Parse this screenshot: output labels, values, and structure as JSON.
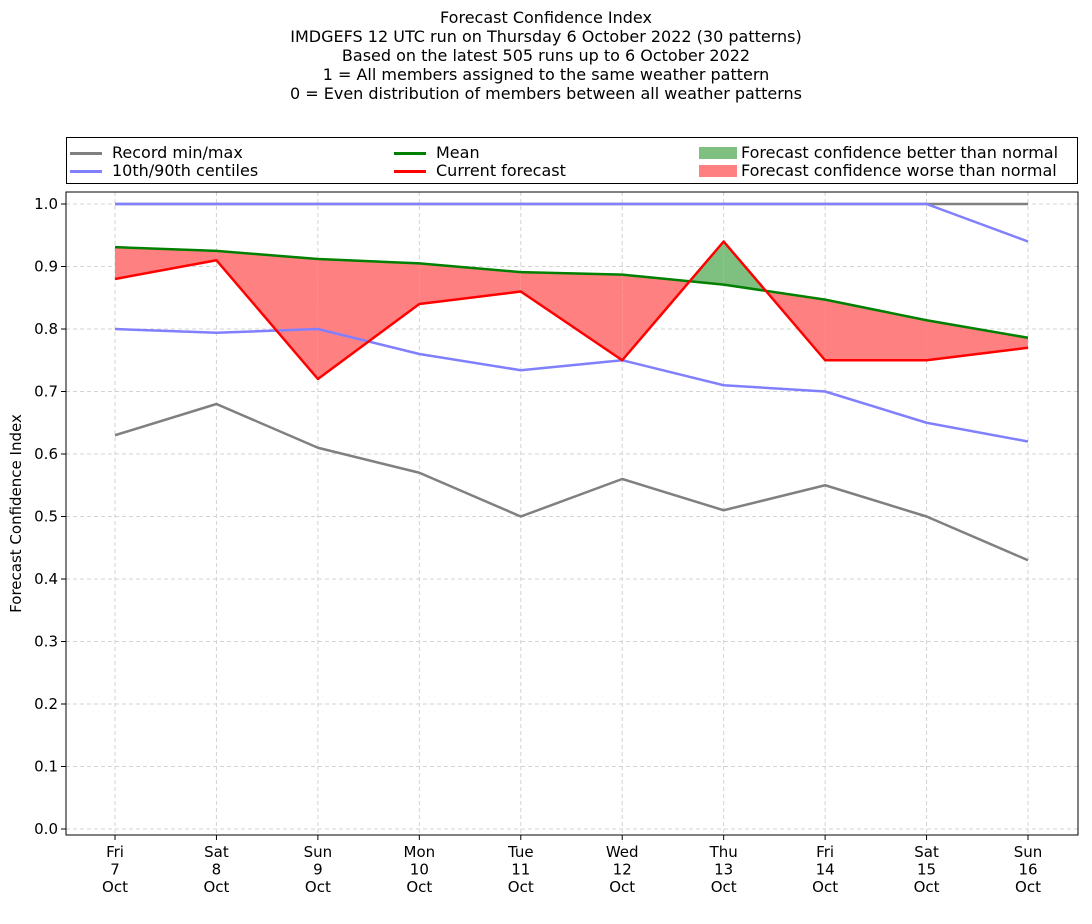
{
  "title_lines": [
    "Forecast Confidence Index",
    "IMDGEFS 12 UTC run on Thursday 6 October 2022 (30 patterns)",
    "Based on the latest 505 runs up to 6 October 2022",
    "1 = All members assigned to the same weather pattern",
    "0 = Even distribution of members between all weather patterns"
  ],
  "legend": {
    "record": "Record min/max",
    "centiles": "10th/90th centiles",
    "mean": "Mean",
    "current": "Current forecast",
    "better": "Forecast confidence better than normal",
    "worse": "Forecast confidence worse than normal"
  },
  "colors": {
    "record": "#808080",
    "centiles": "#8080ff",
    "mean": "#008000",
    "current": "#ff0000",
    "better": "#7fbf7f",
    "worse": "#ff8080",
    "grid": "#d3d3d3"
  },
  "chart_data": {
    "type": "line",
    "title": "Forecast Confidence Index",
    "xlabel": "",
    "ylabel": "Forecast Confidence Index",
    "ylim": [
      0,
      1
    ],
    "yticks": [
      "0.0",
      "0.1",
      "0.2",
      "0.3",
      "0.4",
      "0.5",
      "0.6",
      "0.7",
      "0.8",
      "0.9",
      "1.0"
    ],
    "grid": true,
    "legend_position": "top",
    "categories": [
      [
        "Fri",
        "7",
        "Oct"
      ],
      [
        "Sat",
        "8",
        "Oct"
      ],
      [
        "Sun",
        "9",
        "Oct"
      ],
      [
        "Mon",
        "10",
        "Oct"
      ],
      [
        "Tue",
        "11",
        "Oct"
      ],
      [
        "Wed",
        "12",
        "Oct"
      ],
      [
        "Thu",
        "13",
        "Oct"
      ],
      [
        "Fri",
        "14",
        "Oct"
      ],
      [
        "Sat",
        "15",
        "Oct"
      ],
      [
        "Sun",
        "16",
        "Oct"
      ]
    ],
    "series": [
      {
        "name": "Record min/max",
        "key": "record_max",
        "values": [
          1.0,
          1.0,
          1.0,
          1.0,
          1.0,
          1.0,
          1.0,
          1.0,
          1.0,
          1.0
        ]
      },
      {
        "name": "Record min/max",
        "key": "record_min",
        "values": [
          0.63,
          0.68,
          0.61,
          0.57,
          0.5,
          0.56,
          0.51,
          0.55,
          0.5,
          0.43
        ]
      },
      {
        "name": "10th/90th centiles",
        "key": "p90",
        "values": [
          1.0,
          1.0,
          1.0,
          1.0,
          1.0,
          1.0,
          1.0,
          1.0,
          1.0,
          0.94
        ]
      },
      {
        "name": "10th/90th centiles",
        "key": "p10",
        "values": [
          0.8,
          0.794,
          0.8,
          0.76,
          0.734,
          0.75,
          0.71,
          0.7,
          0.65,
          0.62
        ]
      },
      {
        "name": "Mean",
        "key": "mean",
        "values": [
          0.931,
          0.925,
          0.912,
          0.905,
          0.891,
          0.887,
          0.871,
          0.847,
          0.814,
          0.786
        ]
      },
      {
        "name": "Current forecast",
        "key": "current",
        "values": [
          0.88,
          0.91,
          0.72,
          0.84,
          0.86,
          0.75,
          0.94,
          0.75,
          0.75,
          0.77
        ]
      }
    ]
  }
}
